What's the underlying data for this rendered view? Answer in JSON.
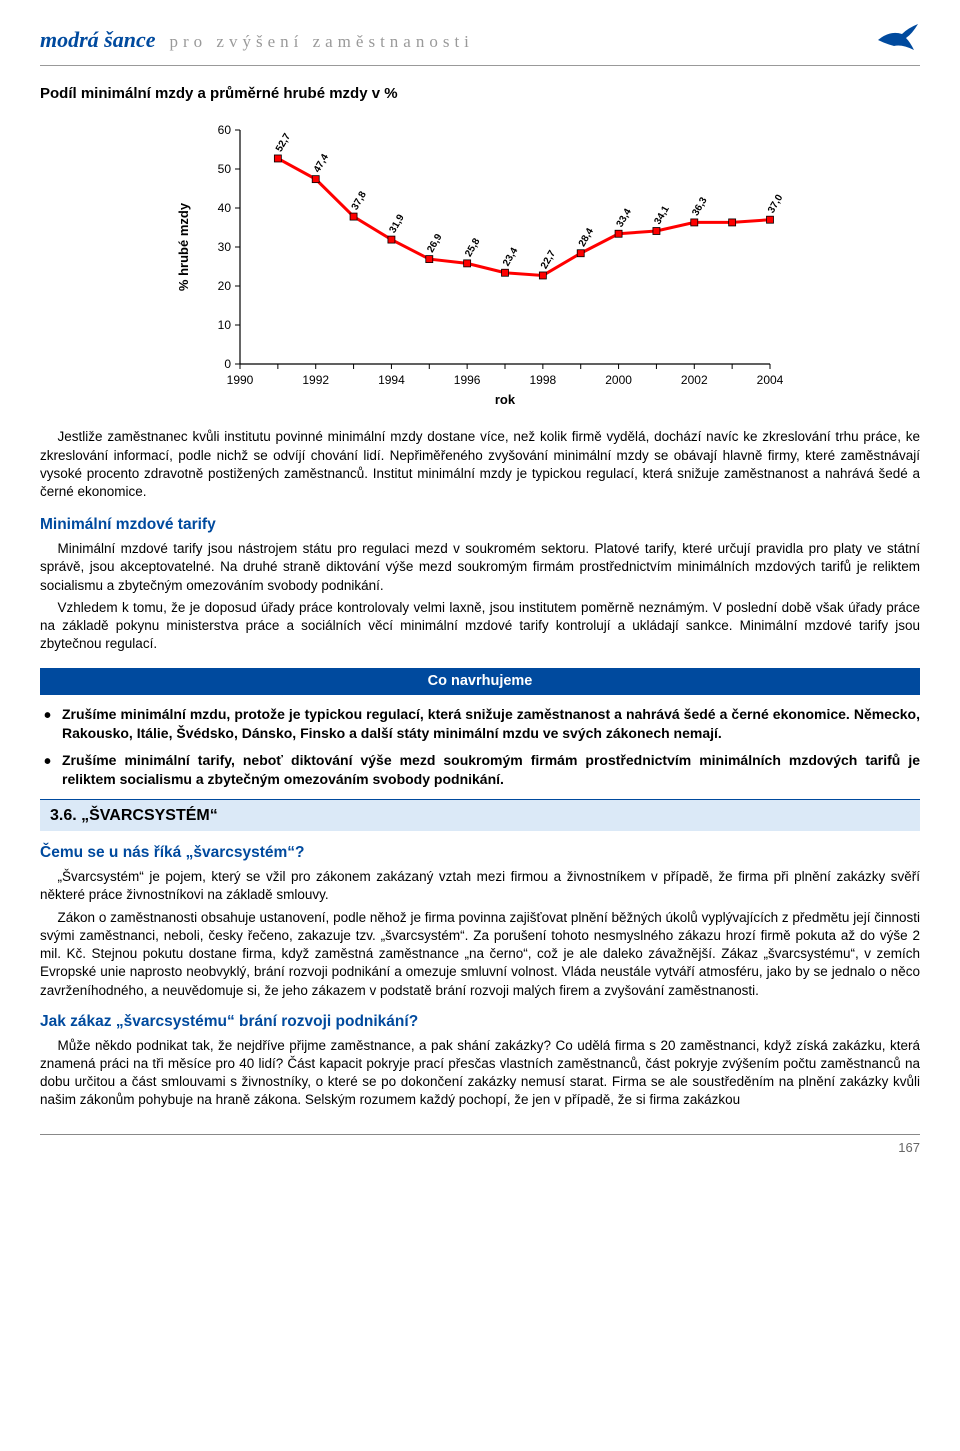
{
  "header": {
    "brand": "modrá šance",
    "tagline": "pro zvýšení zaměstnanosti"
  },
  "chart": {
    "title": "Podíl minimální mzdy a průměrné hrubé mzdy v %",
    "type": "line",
    "y_label": "% hrubé mzdy",
    "x_label": "rok",
    "ylim": [
      0,
      60
    ],
    "ytick_step": 10,
    "y_ticks": [
      "0",
      "10",
      "20",
      "30",
      "40",
      "50",
      "60"
    ],
    "xlim": [
      1990,
      2004
    ],
    "xtick_step": 2,
    "x_ticks": [
      "1990",
      "1992",
      "1994",
      "1996",
      "1998",
      "2000",
      "2002",
      "2004"
    ],
    "years": [
      1991,
      1992,
      1993,
      1994,
      1995,
      1996,
      1997,
      1998,
      1999,
      2000,
      2001,
      2002,
      2003,
      2004
    ],
    "values": [
      52.7,
      47.4,
      37.8,
      31.9,
      26.9,
      25.8,
      23.4,
      22.7,
      28.4,
      33.4,
      34.1,
      36.3,
      36.3,
      37.0
    ],
    "point_labels": [
      "52,7",
      "47,4",
      "37,8",
      "31,9",
      "26,9",
      "25,8",
      "23,4",
      "22,7",
      "28,4",
      "33,4",
      "34,1",
      "36,3",
      "",
      "37,0"
    ],
    "line_color": "#ff0000",
    "marker_fill": "#ff0000",
    "marker_stroke": "#000000",
    "marker_size": 7,
    "line_width": 3,
    "axis_color": "#000000",
    "background_color": "#ffffff",
    "tick_fontsize": 12,
    "label_fontsize": 13,
    "datalabel_fontsize": 10
  },
  "body": {
    "para1": "Jestliže zaměstnanec kvůli institutu povinné minimální mzdy dostane více, než kolik firmě vydělá, dochází navíc ke zkreslování trhu práce, ke zkreslování informací, podle nichž se odvíjí chování lidí. Nepřiměřeného zvyšování minimální mzdy se obávají hlavně firmy, které zaměstnávají vysoké procento zdravotně postižených zaměstnanců. Institut minimální mzdy je typickou regulací, která snižuje zaměstnanost a nahrává šedé a černé ekonomice.",
    "sub1_title": "Minimální mzdové tarify",
    "para2": "Minimální mzdové tarify jsou nástrojem státu pro regulaci mezd v soukromém sektoru. Platové tarify, které určují pravidla pro platy ve státní správě, jsou akceptovatelné. Na druhé straně diktování výše mezd soukromým firmám prostřednictvím minimálních mzdových tarifů je reliktem socialismu a zbytečným omezováním svobody podnikání.",
    "para3": "Vzhledem k tomu, že je doposud úřady práce kontrolovaly velmi laxně, jsou institutem poměrně neznámým. V poslední době však úřady práce na základě pokynu ministerstva práce a sociálních věcí minimální mzdové tarify kontrolují a ukládají sankce. Minimální mzdové tarify jsou zbytečnou regulací.",
    "proposal_bar": "Co navrhujeme",
    "proposal1": "Zrušíme minimální mzdu, protože je typickou regulací, která snižuje zaměstnanost a nahrává šedé a černé ekonomice. Německo, Rakousko, Itálie, Švédsko, Dánsko, Finsko a další státy minimální mzdu ve svých zákonech nemají.",
    "proposal2": "Zrušíme minimální tarify, neboť diktování výše mezd soukromým firmám prostřednictvím minimálních mzdových tarifů je reliktem socialismu a zbytečným omezováním svobody podnikání.",
    "section_title": "3.6. „ŠVARCSYSTÉM“",
    "q1_title": "Čemu se u nás říká „švarcsystém“?",
    "q1_para1": "„Švarcsystém“ je pojem, který se vžil pro zákonem zakázaný vztah mezi firmou a živnostníkem v případě, že firma při plnění zakázky svěří některé práce živnostníkovi na základě smlouvy.",
    "q1_para2": "Zákon o zaměstnanosti obsahuje ustanovení, podle něhož je firma povinna zajišťovat plnění běžných úkolů vyplývajících z předmětu její činnosti svými zaměstnanci, neboli, česky řečeno, zakazuje tzv. „švarcsystém“. Za porušení tohoto nesmyslného zákazu hrozí firmě pokuta až do výše 2 mil. Kč. Stejnou pokutu dostane firma, když zaměstná zaměstnance „na černo“, což je ale daleko závažnější. Zákaz „švarcsystému“, v zemích Evropské unie naprosto neobvyklý, brání rozvoji podnikání a omezuje smluvní volnost. Vláda neustále vytváří atmosféru, jako by se jednalo o něco zavrženíhodného, a neuvědomuje si, že jeho zákazem v podstatě brání rozvoji malých firem a zvyšování zaměstnanosti.",
    "q2_title": "Jak zákaz „švarcsystému“ brání rozvoji podnikání?",
    "q2_para1": "Může někdo podnikat tak, že nejdříve přijme zaměstnance, a pak shání zakázky? Co udělá firma s 20 zaměstnanci, když získá zakázku, která znamená práci na tři měsíce pro 40 lidí? Část kapacit pokryje prací přesčas vlastních zaměstnanců, část pokryje zvýšením počtu zaměstnanců na dobu určitou a část smlouvami s živnostníky, o které se po dokončení zakázky nemusí starat. Firma se ale soustředěním na plnění zakázky kvůli našim zákonům pohybuje na hraně zákona. Selským rozumem každý pochopí, že jen v případě, že si firma zakázkou"
  },
  "footer": {
    "page": "167"
  },
  "colors": {
    "brand_blue": "#004a9e",
    "light_blue_bg": "#dbe9f7",
    "red": "#ff0000",
    "grey_tagline": "#9a9a9a"
  }
}
